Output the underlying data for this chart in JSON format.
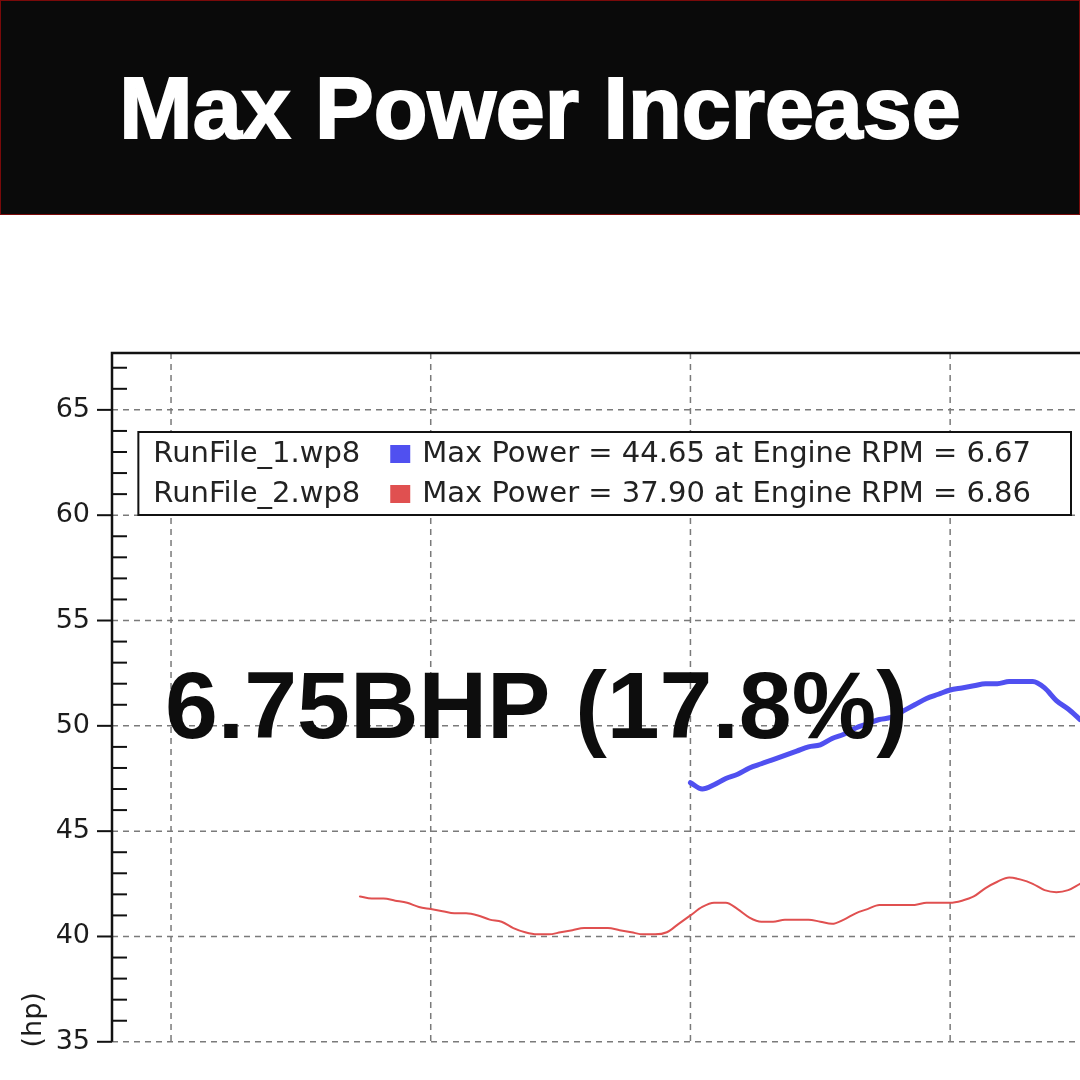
{
  "chart_data": {
    "type": "line",
    "title": "Max Power Increase",
    "ylabel": "(hp)",
    "annotations": [
      "RunFile_1.wp8",
      "RunFile_2.wp8",
      "6.75BHP (17.8%)"
    ],
    "categories": [
      null,
      null,
      null,
      null,
      null,
      null,
      null,
      null,
      null,
      null,
      null,
      null,
      null,
      null,
      null,
      null,
      null,
      null,
      null,
      null,
      null,
      null,
      null,
      null,
      null,
      null,
      null,
      null,
      null,
      null,
      null,
      null,
      null,
      null,
      null,
      null,
      null,
      null,
      null,
      null,
      null,
      null,
      null,
      null,
      null,
      null,
      null,
      null,
      null,
      null,
      null,
      null,
      null,
      null,
      null,
      null,
      null,
      null,
      null,
      null,
      null,
      null,
      null,
      null,
      null,
      null,
      null,
      null,
      null,
      null,
      null,
      null,
      null,
      null,
      null,
      null,
      null,
      null,
      null,
      null,
      null,
      null,
      null
    ],
    "series": [
      {
        "name": "Max Power = 44.65 at Engine RPM = 6.67",
        "color": "#5050f0",
        "values": [
          null,
          null,
          null,
          null,
          null,
          null,
          null,
          null,
          null,
          null,
          null,
          null,
          null,
          null,
          null,
          null,
          null,
          null,
          null,
          null,
          null,
          null,
          null,
          null,
          null,
          null,
          null,
          null,
          null,
          null,
          null,
          null,
          null,
          null,
          null,
          null,
          null,
          null,
          null,
          null,
          null,
          null,
          null,
          null,
          null,
          null,
          null,
          null,
          null,
          47.3,
          47.0,
          47.2,
          47.5,
          47.7,
          48.0,
          48.2,
          48.4,
          48.6,
          48.8,
          49.0,
          49.1,
          49.4,
          49.6,
          49.9,
          50.1,
          50.3,
          50.4,
          50.7,
          51.0,
          51.3,
          51.5,
          51.7,
          51.8,
          51.9,
          52.0,
          52.0,
          52.1,
          52.1,
          52.1,
          51.8,
          51.2,
          50.8,
          50.3
        ]
      },
      {
        "name": "Max Power = 37.90 at Engine RPM = 6.86",
        "color": "#e05050",
        "values": [
          null,
          null,
          null,
          null,
          null,
          null,
          null,
          null,
          null,
          null,
          null,
          null,
          null,
          null,
          null,
          null,
          null,
          null,
          null,
          null,
          null,
          41.9,
          41.8,
          41.8,
          41.7,
          41.6,
          41.4,
          41.3,
          41.2,
          41.1,
          41.1,
          41.0,
          40.8,
          40.7,
          40.4,
          40.2,
          40.1,
          40.1,
          40.2,
          40.3,
          40.4,
          40.4,
          40.4,
          40.3,
          40.2,
          40.1,
          40.1,
          40.2,
          40.6,
          41.0,
          41.4,
          41.6,
          41.6,
          41.3,
          40.9,
          40.7,
          40.7,
          40.8,
          40.8,
          40.8,
          40.7,
          40.6,
          40.8,
          41.1,
          41.3,
          41.5,
          41.5,
          41.5,
          41.5,
          41.6,
          41.6,
          41.6,
          41.7,
          41.9,
          42.3,
          42.6,
          42.8,
          42.7,
          42.5,
          42.2,
          42.1,
          42.2,
          42.5
        ]
      }
    ],
    "ylim": [
      35,
      67.7
    ],
    "yticks": [
      35,
      {
        "value": 36,
        "label": null
      },
      {
        "value": 37,
        "label": null
      },
      {
        "value": 38,
        "label": null
      },
      {
        "value": 39,
        "label": null
      },
      40,
      {
        "value": 41,
        "label": null
      },
      {
        "value": 42,
        "label": null
      },
      {
        "value": 43,
        "label": null
      },
      {
        "value": 44,
        "label": null
      },
      45,
      {
        "value": 46,
        "label": null
      },
      {
        "value": 47,
        "label": null
      },
      {
        "value": 48,
        "label": null
      },
      {
        "value": 49,
        "label": null
      },
      50,
      {
        "value": 51,
        "label": null
      },
      {
        "value": 52,
        "label": null
      },
      {
        "value": 53,
        "label": null
      },
      {
        "value": 54,
        "label": null
      },
      55,
      {
        "value": 56,
        "label": null
      },
      {
        "value": 57,
        "label": null
      },
      {
        "value": 58,
        "label": null
      },
      {
        "value": 59,
        "label": null
      },
      60,
      {
        "value": 61,
        "label": null
      },
      {
        "value": 62,
        "label": null
      },
      {
        "value": 63,
        "label": null
      },
      {
        "value": 64,
        "label": null
      },
      65,
      {
        "value": 66,
        "label": null
      },
      {
        "value": 67,
        "label": null
      }
    ],
    "grid": true,
    "legend": "top right"
  }
}
